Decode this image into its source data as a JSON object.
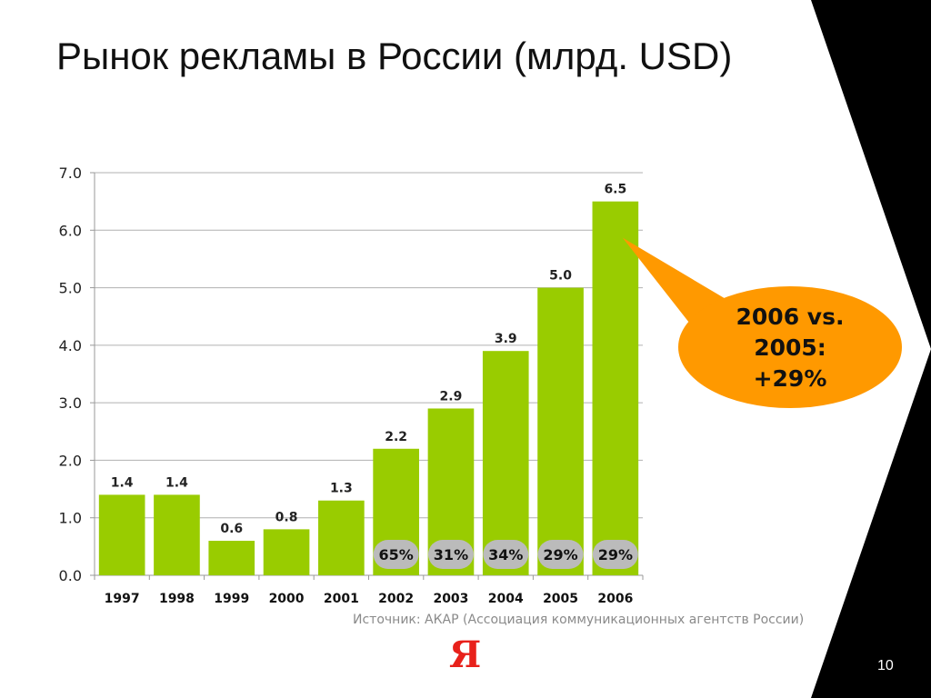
{
  "slide": {
    "title": "Рынок рекламы в России (млрд. USD)",
    "source": "Источник: АКАР (Ассоциация коммуникационных агентств России)",
    "logo": "Я",
    "page_number": "10",
    "colors": {
      "bar": "#99cc00",
      "callout": "#ff9900",
      "growth_badge": "#bbbbbb",
      "logo": "#e8211b",
      "chevron": "#000000"
    }
  },
  "chart_data": {
    "type": "bar",
    "title": "Рынок рекламы в России (млрд. USD)",
    "xlabel": "",
    "ylabel": "",
    "categories": [
      "1997",
      "1998",
      "1999",
      "2000",
      "2001",
      "2002",
      "2003",
      "2004",
      "2005",
      "2006"
    ],
    "values": [
      1.4,
      1.4,
      0.6,
      0.8,
      1.3,
      2.2,
      2.9,
      3.9,
      5.0,
      6.5
    ],
    "value_labels": [
      "1.4",
      "1.4",
      "0.6",
      "0.8",
      "1.3",
      "2.2",
      "2.9",
      "3.9",
      "5.0",
      "6.5"
    ],
    "ylim": [
      0,
      7
    ],
    "yticks": [
      "0.0",
      "1.0",
      "2.0",
      "3.0",
      "4.0",
      "5.0",
      "6.0",
      "7.0"
    ],
    "grid": true,
    "growth_labels": [
      {
        "category": "2002",
        "label": "65%"
      },
      {
        "category": "2003",
        "label": "31%"
      },
      {
        "category": "2004",
        "label": "34%"
      },
      {
        "category": "2005",
        "label": "29%"
      },
      {
        "category": "2006",
        "label": "29%"
      }
    ],
    "callout": {
      "target_category": "2006",
      "lines": [
        "2006 vs.",
        "2005:",
        "+29%"
      ]
    }
  }
}
